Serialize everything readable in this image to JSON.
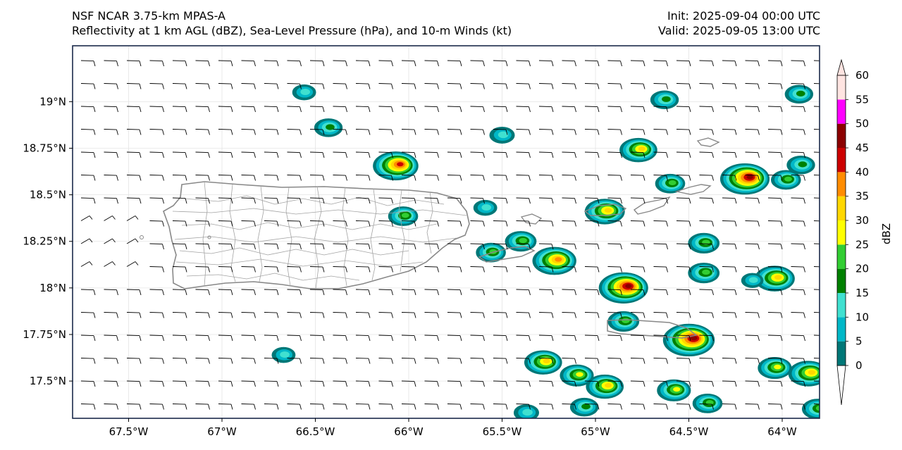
{
  "header": {
    "title_line1": "NSF NCAR 3.75-km MPAS-A",
    "title_line2": "Reflectivity at 1 km AGL (dBZ), Sea-Level Pressure (hPa), and 10-m Winds (kt)",
    "init": "Init: 2025-09-04 00:00 UTC",
    "valid": "Valid: 2025-09-05 13:00 UTC"
  },
  "map": {
    "lon_ticks": [
      "67.5°W",
      "67°W",
      "66.5°W",
      "66°W",
      "65.5°W",
      "65°W",
      "64.5°W",
      "64°W"
    ],
    "lon_values": [
      -67.5,
      -67,
      -66.5,
      -66,
      -65.5,
      -65,
      -64.5,
      -64
    ],
    "lat_ticks": [
      "19°N",
      "18.75°N",
      "18.5°N",
      "18.25°N",
      "18°N",
      "17.75°N",
      "17.5°N"
    ],
    "lat_values": [
      19,
      18.75,
      18.5,
      18.25,
      18,
      17.75,
      17.5
    ],
    "extent": {
      "lon_min": -67.8,
      "lon_max": -63.8,
      "lat_min": 17.3,
      "lat_max": 19.3
    },
    "colors": {
      "background": "#ffffff",
      "frame": "#1a2a4a",
      "coastline": "#888888",
      "municipal_lines": "#a0a0a0",
      "barbs": "#000000"
    },
    "cells": [
      {
        "lon": -66.07,
        "lat": 18.655,
        "peak": 40
      },
      {
        "lon": -65.22,
        "lat": 18.145,
        "peak": 38
      },
      {
        "lon": -64.85,
        "lat": 18.0,
        "peak": 45
      },
      {
        "lon": -64.5,
        "lat": 17.72,
        "peak": 48
      },
      {
        "lon": -64.2,
        "lat": 18.585,
        "peak": 45
      },
      {
        "lon": -64.95,
        "lat": 18.41,
        "peak": 33
      },
      {
        "lon": -64.77,
        "lat": 18.74,
        "peak": 30
      },
      {
        "lon": -64.04,
        "lat": 18.05,
        "peak": 33
      },
      {
        "lon": -63.86,
        "lat": 17.54,
        "peak": 33
      },
      {
        "lon": -65.28,
        "lat": 17.6,
        "peak": 30
      },
      {
        "lon": -65.1,
        "lat": 17.53,
        "peak": 25
      },
      {
        "lon": -64.95,
        "lat": 17.47,
        "peak": 30
      },
      {
        "lon": -64.58,
        "lat": 17.45,
        "peak": 25
      },
      {
        "lon": -64.4,
        "lat": 17.38,
        "peak": 20
      },
      {
        "lon": -66.03,
        "lat": 18.385,
        "peak": 20
      },
      {
        "lon": -64.85,
        "lat": 17.82,
        "peak": 22
      },
      {
        "lon": -64.42,
        "lat": 18.08,
        "peak": 22
      },
      {
        "lon": -64.42,
        "lat": 18.24,
        "peak": 22
      },
      {
        "lon": -64.6,
        "lat": 18.56,
        "peak": 20
      },
      {
        "lon": -63.98,
        "lat": 18.58,
        "peak": 20
      },
      {
        "lon": -63.9,
        "lat": 18.66,
        "peak": 18
      },
      {
        "lon": -64.04,
        "lat": 17.57,
        "peak": 25
      },
      {
        "lon": -65.4,
        "lat": 18.25,
        "peak": 22
      },
      {
        "lon": -65.56,
        "lat": 18.19,
        "peak": 20
      },
      {
        "lon": -66.43,
        "lat": 18.86,
        "peak": 18
      },
      {
        "lon": -64.63,
        "lat": 19.01,
        "peak": 18
      },
      {
        "lon": -63.91,
        "lat": 19.04,
        "peak": 18
      },
      {
        "lon": -65.5,
        "lat": 18.82,
        "peak": 14
      },
      {
        "lon": -65.59,
        "lat": 18.43,
        "peak": 12
      },
      {
        "lon": -66.56,
        "lat": 19.05,
        "peak": 12
      },
      {
        "lon": -66.67,
        "lat": 17.64,
        "peak": 12
      },
      {
        "lon": -65.06,
        "lat": 17.36,
        "peak": 18
      },
      {
        "lon": -65.37,
        "lat": 17.33,
        "peak": 14
      },
      {
        "lon": -64.16,
        "lat": 18.04,
        "peak": 10
      },
      {
        "lon": -63.81,
        "lat": 17.35,
        "peak": 22
      }
    ]
  },
  "colorbar": {
    "label": "dBZ",
    "ticks": [
      "0",
      "5",
      "10",
      "15",
      "20",
      "25",
      "30",
      "35",
      "40",
      "45",
      "50",
      "55",
      "60"
    ],
    "levels": [
      0,
      5,
      10,
      15,
      20,
      25,
      30,
      35,
      40,
      45,
      50,
      55,
      60
    ],
    "colors": [
      "#007777",
      "#00b7c7",
      "#40e0d0",
      "#008000",
      "#32cd32",
      "#ffff00",
      "#ffd700",
      "#ff8c00",
      "#cc0000",
      "#8b0000",
      "#ff00ff",
      "#ffe4e1"
    ],
    "under_color": "#ffffff",
    "over_color": "#ffe4e1"
  }
}
